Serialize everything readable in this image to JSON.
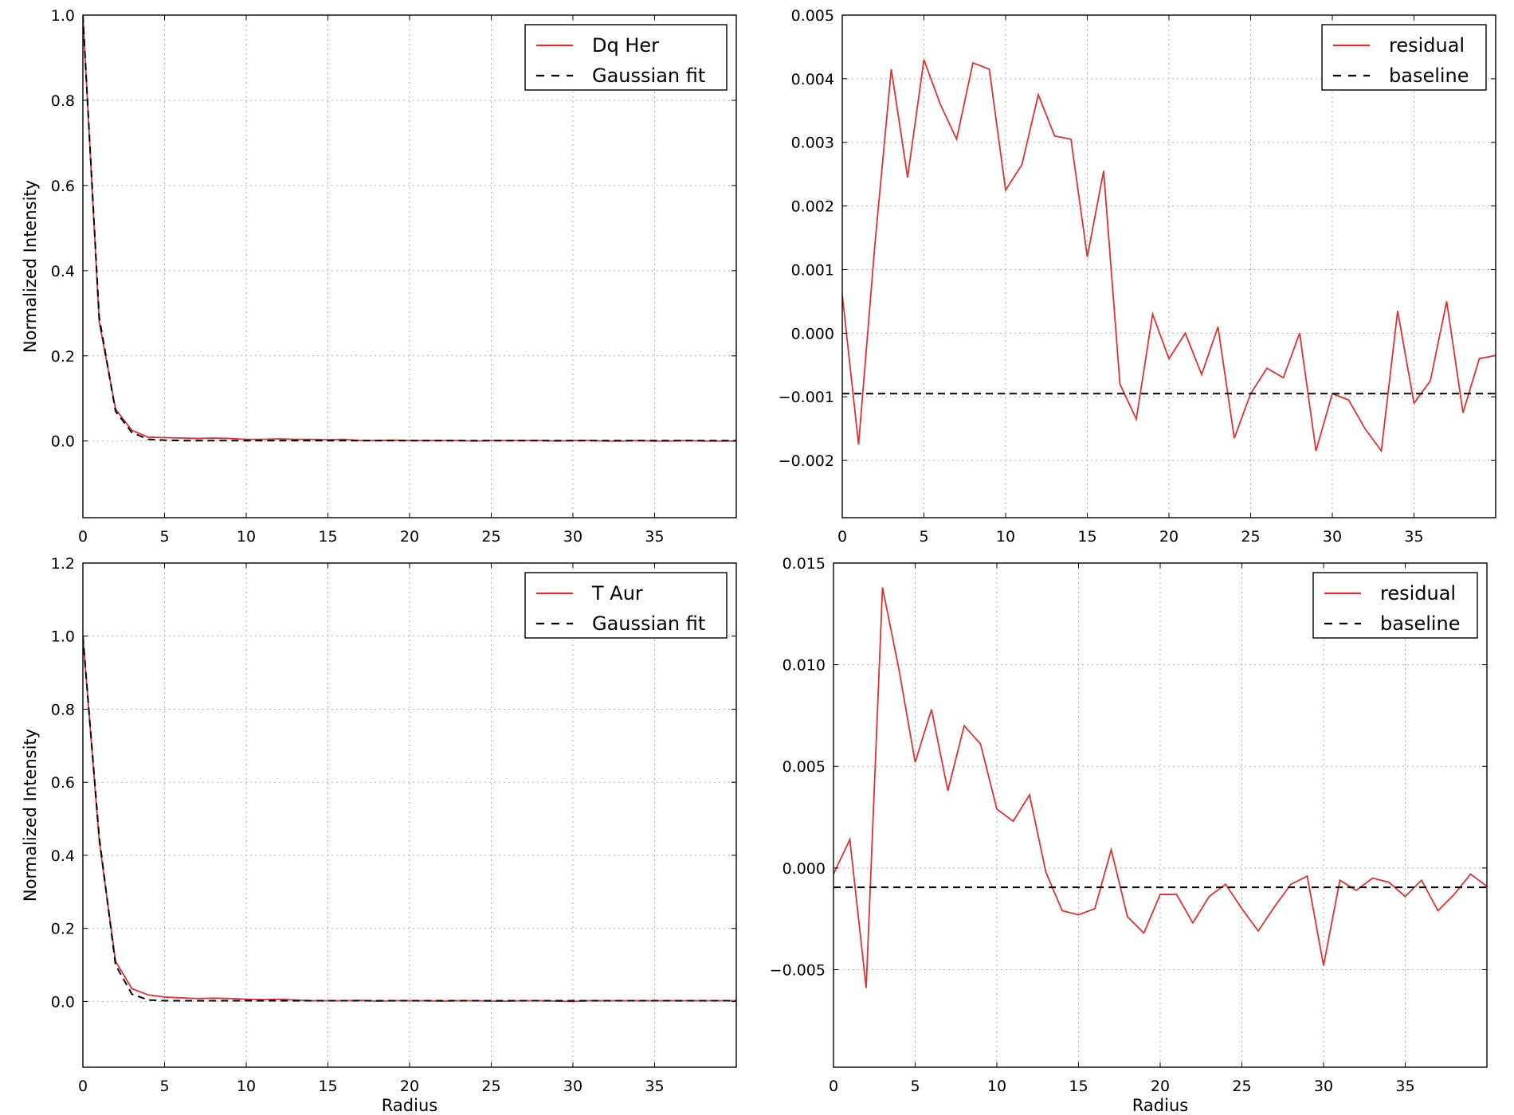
{
  "chart_data": [
    {
      "type": "line",
      "title": "",
      "xlabel": "",
      "ylabel": "Normalized Intensity",
      "xlim": [
        0,
        40
      ],
      "ylim": [
        -0.18,
        1.0
      ],
      "xticks": [
        0,
        5,
        10,
        15,
        20,
        25,
        30,
        35
      ],
      "yticks": [
        0.0,
        0.2,
        0.4,
        0.6,
        0.8,
        1.0
      ],
      "ytick_labels": [
        "0.0",
        "0.2",
        "0.4",
        "0.6",
        "0.8",
        "1.0"
      ],
      "grid": true,
      "legend_position": "top-right",
      "series": [
        {
          "name": "Dq Her",
          "color": "#e03030",
          "style": "solid",
          "x": [
            0,
            1,
            2,
            3,
            4,
            5,
            6,
            7,
            8,
            9,
            10,
            11,
            12,
            13,
            14,
            15,
            16,
            17,
            18,
            19,
            20,
            21,
            22,
            23,
            24,
            25,
            26,
            27,
            28,
            29,
            30,
            31,
            32,
            33,
            34,
            35,
            36,
            37,
            38,
            39,
            40
          ],
          "y": [
            1.0,
            0.28,
            0.075,
            0.025,
            0.009,
            0.008,
            0.007,
            0.006,
            0.007,
            0.006,
            0.004,
            0.004,
            0.005,
            0.004,
            0.004,
            0.003,
            0.004,
            0.001,
            0.001,
            0.002,
            0.001,
            0.001,
            0.001,
            0.001,
            0.0,
            0.001,
            0.001,
            0.001,
            0.001,
            0.0,
            0.001,
            0.001,
            0.0,
            0.0,
            0.001,
            0.0,
            0.0,
            0.001,
            0.0,
            0.0,
            0.0
          ]
        },
        {
          "name": "Gaussian fit",
          "color": "#000000",
          "style": "dashed",
          "x": [
            0,
            1,
            2,
            3,
            4,
            5,
            6,
            7,
            8,
            9,
            10,
            11,
            12,
            13,
            14,
            15,
            16,
            17,
            18,
            19,
            20,
            21,
            22,
            23,
            24,
            25,
            26,
            27,
            28,
            29,
            30,
            31,
            32,
            33,
            34,
            35,
            36,
            37,
            38,
            39,
            40
          ],
          "y": [
            1.0,
            0.29,
            0.07,
            0.02,
            0.004,
            0.002,
            0.001,
            0.001,
            0.001,
            0.001,
            0.001,
            0.001,
            0.001,
            0.001,
            0.001,
            0.001,
            0.001,
            0.001,
            0.001,
            0.001,
            0.001,
            0.001,
            0.001,
            0.001,
            0.001,
            0.001,
            0.001,
            0.001,
            0.001,
            0.001,
            0.001,
            0.001,
            0.001,
            0.001,
            0.001,
            0.001,
            0.001,
            0.001,
            0.001,
            0.001,
            0.001
          ]
        }
      ]
    },
    {
      "type": "line",
      "title": "",
      "xlabel": "",
      "ylabel": "",
      "xlim": [
        0,
        40
      ],
      "ylim": [
        -0.0029,
        0.005
      ],
      "xticks": [
        0,
        5,
        10,
        15,
        20,
        25,
        30,
        35
      ],
      "yticks": [
        -0.002,
        -0.001,
        0.0,
        0.001,
        0.002,
        0.003,
        0.004,
        0.005
      ],
      "ytick_labels": [
        "−0.002",
        "−0.001",
        "0.000",
        "0.001",
        "0.002",
        "0.003",
        "0.004",
        "0.005"
      ],
      "grid": true,
      "legend_position": "top-right",
      "series": [
        {
          "name": "residual",
          "color": "#e03030",
          "style": "solid",
          "x": [
            0,
            1,
            2,
            3,
            4,
            5,
            6,
            7,
            8,
            9,
            10,
            11,
            12,
            13,
            14,
            15,
            16,
            17,
            18,
            19,
            20,
            21,
            22,
            23,
            24,
            25,
            26,
            27,
            28,
            29,
            30,
            31,
            32,
            33,
            34,
            35,
            36,
            37,
            38,
            39,
            40
          ],
          "y": [
            0.0006,
            -0.00175,
            0.0014,
            0.00415,
            0.00245,
            0.0043,
            0.0036,
            0.00305,
            0.00425,
            0.00415,
            0.00225,
            0.00265,
            0.00375,
            0.0031,
            0.00305,
            0.0012,
            0.00255,
            -0.0008,
            -0.00135,
            0.0003,
            -0.0004,
            0.0,
            -0.00065,
            0.0001,
            -0.00165,
            -0.00095,
            -0.00055,
            -0.0007,
            0.0,
            -0.00185,
            -0.00095,
            -0.00105,
            -0.0015,
            -0.00185,
            0.00035,
            -0.0011,
            -0.00075,
            0.0005,
            -0.00125,
            -0.0004,
            -0.00035
          ]
        },
        {
          "name": "baseline",
          "color": "#000000",
          "style": "dashed",
          "x": [
            0,
            40
          ],
          "y": [
            -0.00095,
            -0.00095
          ]
        }
      ]
    },
    {
      "type": "line",
      "title": "",
      "xlabel": "Radius",
      "ylabel": "Normalized Intensity",
      "xlim": [
        0,
        40
      ],
      "ylim": [
        -0.18,
        1.2
      ],
      "xticks": [
        0,
        5,
        10,
        15,
        20,
        25,
        30,
        35
      ],
      "yticks": [
        0.0,
        0.2,
        0.4,
        0.6,
        0.8,
        1.0,
        1.2
      ],
      "ytick_labels": [
        "0.0",
        "0.2",
        "0.4",
        "0.6",
        "0.8",
        "1.0",
        "1.2"
      ],
      "grid": true,
      "legend_position": "top-right",
      "series": [
        {
          "name": "T Aur",
          "color": "#e03030",
          "style": "solid",
          "x": [
            0,
            1,
            2,
            3,
            4,
            5,
            6,
            7,
            8,
            9,
            10,
            11,
            12,
            13,
            14,
            15,
            16,
            17,
            18,
            19,
            20,
            21,
            22,
            23,
            24,
            25,
            26,
            27,
            28,
            29,
            30,
            31,
            32,
            33,
            34,
            35,
            36,
            37,
            38,
            39,
            40
          ],
          "y": [
            1.0,
            0.44,
            0.11,
            0.035,
            0.018,
            0.012,
            0.01,
            0.008,
            0.009,
            0.008,
            0.006,
            0.005,
            0.006,
            0.004,
            0.002,
            0.002,
            0.002,
            0.003,
            0.001,
            0.002,
            0.002,
            0.002,
            0.001,
            0.002,
            0.002,
            0.001,
            0.001,
            0.002,
            0.002,
            0.001,
            0.0,
            0.002,
            0.002,
            0.002,
            0.002,
            0.002,
            0.002,
            0.002,
            0.002,
            0.002,
            0.002
          ]
        },
        {
          "name": "Gaussian fit",
          "color": "#000000",
          "style": "dashed",
          "x": [
            0,
            1,
            2,
            3,
            4,
            5,
            6,
            7,
            8,
            9,
            10,
            11,
            12,
            13,
            14,
            15,
            16,
            17,
            18,
            19,
            20,
            21,
            22,
            23,
            24,
            25,
            26,
            27,
            28,
            29,
            30,
            31,
            32,
            33,
            34,
            35,
            36,
            37,
            38,
            39,
            40
          ],
          "y": [
            1.0,
            0.45,
            0.1,
            0.02,
            0.004,
            0.002,
            0.002,
            0.002,
            0.002,
            0.002,
            0.002,
            0.002,
            0.002,
            0.002,
            0.002,
            0.002,
            0.002,
            0.002,
            0.002,
            0.002,
            0.002,
            0.002,
            0.002,
            0.002,
            0.002,
            0.002,
            0.002,
            0.002,
            0.002,
            0.002,
            0.002,
            0.002,
            0.002,
            0.002,
            0.002,
            0.002,
            0.002,
            0.002,
            0.002,
            0.002,
            0.002
          ]
        }
      ]
    },
    {
      "type": "line",
      "title": "",
      "xlabel": "Radius",
      "ylabel": "",
      "xlim": [
        0,
        40
      ],
      "ylim": [
        -0.0098,
        0.015
      ],
      "xticks": [
        0,
        5,
        10,
        15,
        20,
        25,
        30,
        35
      ],
      "yticks": [
        -0.005,
        0.0,
        0.005,
        0.01,
        0.015
      ],
      "ytick_labels": [
        "−0.005",
        "0.000",
        "0.005",
        "0.010",
        "0.015"
      ],
      "grid": true,
      "legend_position": "top-right",
      "series": [
        {
          "name": "residual",
          "color": "#e03030",
          "style": "solid",
          "x": [
            0,
            1,
            2,
            3,
            4,
            5,
            6,
            7,
            8,
            9,
            10,
            11,
            12,
            13,
            14,
            15,
            16,
            17,
            18,
            19,
            20,
            21,
            22,
            23,
            24,
            25,
            26,
            27,
            28,
            29,
            30,
            31,
            32,
            33,
            34,
            35,
            36,
            37,
            38,
            39,
            40
          ],
          "y": [
            -0.0003,
            0.0014,
            -0.0059,
            0.0138,
            0.0098,
            0.0052,
            0.0078,
            0.0038,
            0.007,
            0.0061,
            0.0029,
            0.0023,
            0.0036,
            -0.0002,
            -0.0021,
            -0.0023,
            -0.002,
            0.0009,
            -0.0024,
            -0.0032,
            -0.0013,
            -0.0013,
            -0.0027,
            -0.0014,
            -0.0008,
            -0.002,
            -0.0031,
            -0.0019,
            -0.0008,
            -0.0004,
            -0.0048,
            -0.0006,
            -0.0011,
            -0.0005,
            -0.0007,
            -0.0014,
            -0.0006,
            -0.0021,
            -0.0013,
            -0.0003,
            -0.0009
          ]
        },
        {
          "name": "baseline",
          "color": "#000000",
          "style": "dashed",
          "x": [
            0,
            40
          ],
          "y": [
            -0.00095,
            -0.00095
          ]
        }
      ]
    }
  ]
}
